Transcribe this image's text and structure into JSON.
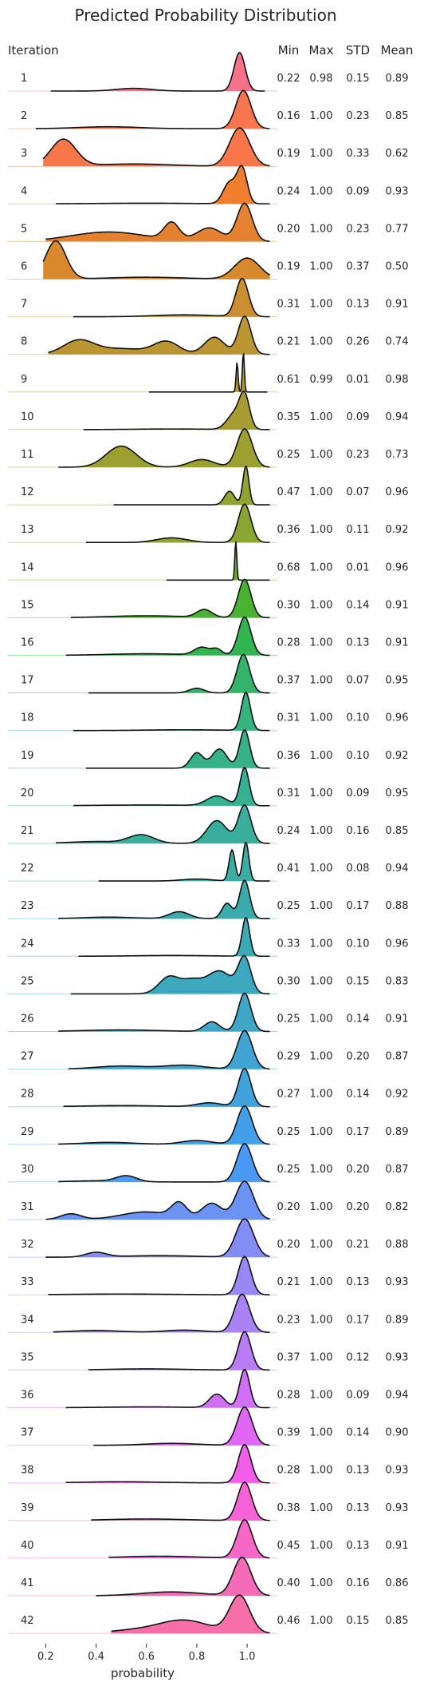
{
  "chart_data": {
    "type": "ridgeline",
    "title": "Predicted Probability Distribution",
    "xlabel": "probability",
    "xticks": [
      "0.2",
      "0.4",
      "0.6",
      "0.8",
      "1.0"
    ],
    "xlim": [
      0.05,
      1.12
    ],
    "grid": false,
    "row_label_header": "Iteration",
    "stat_headers": [
      "Min",
      "Max",
      "STD",
      "Mean"
    ],
    "rows": [
      {
        "iteration": "1",
        "min": "0.22",
        "max": "0.98",
        "std": "0.15",
        "mean": "0.89",
        "color": "#f77189",
        "peaks": [
          [
            0.97,
            0.022,
            1.0
          ],
          [
            0.55,
            0.07,
            0.07
          ]
        ]
      },
      {
        "iteration": "2",
        "min": "0.16",
        "max": "1.00",
        "std": "0.23",
        "mean": "0.85",
        "color": "#f7754f",
        "peaks": [
          [
            0.985,
            0.03,
            1.0
          ],
          [
            0.45,
            0.12,
            0.05
          ]
        ]
      },
      {
        "iteration": "3",
        "min": "0.19",
        "max": "1.00",
        "std": "0.33",
        "mean": "0.62",
        "color": "#f7764a",
        "peaks": [
          [
            0.97,
            0.04,
            1.0
          ],
          [
            0.27,
            0.05,
            0.7
          ],
          [
            0.55,
            0.15,
            0.06
          ]
        ]
      },
      {
        "iteration": "4",
        "min": "0.24",
        "max": "1.00",
        "std": "0.09",
        "mean": "0.93",
        "color": "#ef7e2e",
        "peaks": [
          [
            0.98,
            0.02,
            1.0
          ],
          [
            0.93,
            0.025,
            0.6
          ],
          [
            0.6,
            0.2,
            0.02
          ]
        ]
      },
      {
        "iteration": "5",
        "min": "0.20",
        "max": "1.00",
        "std": "0.23",
        "mean": "0.77",
        "color": "#e48231",
        "peaks": [
          [
            0.99,
            0.03,
            1.0
          ],
          [
            0.7,
            0.03,
            0.45
          ],
          [
            0.85,
            0.05,
            0.35
          ],
          [
            0.45,
            0.15,
            0.25
          ]
        ]
      },
      {
        "iteration": "6",
        "min": "0.19",
        "max": "1.00",
        "std": "0.37",
        "mean": "0.50",
        "color": "#d8892e",
        "peaks": [
          [
            0.24,
            0.04,
            1.0
          ],
          [
            1.0,
            0.05,
            0.55
          ],
          [
            0.6,
            0.15,
            0.05
          ]
        ]
      },
      {
        "iteration": "7",
        "min": "0.31",
        "max": "1.00",
        "std": "0.13",
        "mean": "0.91",
        "color": "#c98f31",
        "peaks": [
          [
            0.98,
            0.025,
            1.0
          ],
          [
            0.75,
            0.12,
            0.05
          ]
        ]
      },
      {
        "iteration": "8",
        "min": "0.21",
        "max": "1.00",
        "std": "0.26",
        "mean": "0.74",
        "color": "#bb9531",
        "peaks": [
          [
            0.99,
            0.025,
            1.0
          ],
          [
            0.33,
            0.06,
            0.35
          ],
          [
            0.68,
            0.05,
            0.32
          ],
          [
            0.87,
            0.04,
            0.45
          ],
          [
            0.5,
            0.1,
            0.15
          ]
        ]
      },
      {
        "iteration": "9",
        "min": "0.61",
        "max": "0.99",
        "std": "0.01",
        "mean": "0.98",
        "color": "#b09931",
        "peaks": [
          [
            0.985,
            0.004,
            1.0
          ],
          [
            0.96,
            0.004,
            0.75
          ]
        ]
      },
      {
        "iteration": "10",
        "min": "0.35",
        "max": "1.00",
        "std": "0.09",
        "mean": "0.94",
        "color": "#a69c31",
        "peaks": [
          [
            0.99,
            0.02,
            1.0
          ],
          [
            0.95,
            0.03,
            0.5
          ],
          [
            0.7,
            0.15,
            0.02
          ]
        ]
      },
      {
        "iteration": "11",
        "min": "0.25",
        "max": "1.00",
        "std": "0.23",
        "mean": "0.73",
        "color": "#9ca031",
        "peaks": [
          [
            0.99,
            0.03,
            1.0
          ],
          [
            0.5,
            0.06,
            0.55
          ],
          [
            0.82,
            0.05,
            0.2
          ]
        ]
      },
      {
        "iteration": "12",
        "min": "0.47",
        "max": "1.00",
        "std": "0.07",
        "mean": "0.96",
        "color": "#94a231",
        "peaks": [
          [
            0.995,
            0.012,
            1.0
          ],
          [
            0.93,
            0.02,
            0.35
          ]
        ]
      },
      {
        "iteration": "13",
        "min": "0.36",
        "max": "1.00",
        "std": "0.11",
        "mean": "0.92",
        "color": "#8aa531",
        "peaks": [
          [
            0.99,
            0.025,
            1.0
          ],
          [
            0.7,
            0.06,
            0.12
          ]
        ]
      },
      {
        "iteration": "14",
        "min": "0.68",
        "max": "1.00",
        "std": "0.01",
        "mean": "0.96",
        "color": "#6cad31",
        "peaks": [
          [
            0.955,
            0.004,
            1.0
          ]
        ]
      },
      {
        "iteration": "15",
        "min": "0.30",
        "max": "1.00",
        "std": "0.14",
        "mean": "0.91",
        "color": "#4ab232",
        "peaks": [
          [
            0.99,
            0.025,
            1.0
          ],
          [
            0.83,
            0.03,
            0.2
          ],
          [
            0.6,
            0.15,
            0.05
          ]
        ]
      },
      {
        "iteration": "16",
        "min": "0.28",
        "max": "1.00",
        "std": "0.13",
        "mean": "0.91",
        "color": "#32b450",
        "peaks": [
          [
            0.99,
            0.025,
            1.0
          ],
          [
            0.82,
            0.03,
            0.2
          ],
          [
            0.88,
            0.02,
            0.15
          ],
          [
            0.6,
            0.15,
            0.04
          ]
        ]
      },
      {
        "iteration": "17",
        "min": "0.37",
        "max": "1.00",
        "std": "0.07",
        "mean": "0.95",
        "color": "#34b36b",
        "peaks": [
          [
            0.985,
            0.025,
            1.0
          ],
          [
            0.8,
            0.03,
            0.12
          ]
        ]
      },
      {
        "iteration": "18",
        "min": "0.31",
        "max": "1.00",
        "std": "0.10",
        "mean": "0.96",
        "color": "#36b27c",
        "peaks": [
          [
            0.995,
            0.018,
            1.0
          ],
          [
            0.75,
            0.15,
            0.02
          ]
        ]
      },
      {
        "iteration": "19",
        "min": "0.36",
        "max": "1.00",
        "std": "0.10",
        "mean": "0.92",
        "color": "#37b188",
        "peaks": [
          [
            0.99,
            0.02,
            1.0
          ],
          [
            0.89,
            0.03,
            0.5
          ],
          [
            0.8,
            0.025,
            0.4
          ]
        ]
      },
      {
        "iteration": "20",
        "min": "0.31",
        "max": "1.00",
        "std": "0.09",
        "mean": "0.95",
        "color": "#38b092",
        "peaks": [
          [
            0.99,
            0.018,
            1.0
          ],
          [
            0.88,
            0.04,
            0.25
          ],
          [
            0.6,
            0.2,
            0.02
          ]
        ]
      },
      {
        "iteration": "21",
        "min": "0.24",
        "max": "1.00",
        "std": "0.16",
        "mean": "0.85",
        "color": "#39ae9c",
        "peaks": [
          [
            0.99,
            0.025,
            1.0
          ],
          [
            0.88,
            0.04,
            0.6
          ],
          [
            0.58,
            0.05,
            0.22
          ],
          [
            0.4,
            0.1,
            0.05
          ]
        ]
      },
      {
        "iteration": "22",
        "min": "0.41",
        "max": "1.00",
        "std": "0.08",
        "mean": "0.94",
        "color": "#3aada4",
        "peaks": [
          [
            0.995,
            0.012,
            1.0
          ],
          [
            0.94,
            0.012,
            0.8
          ],
          [
            0.8,
            0.06,
            0.05
          ]
        ]
      },
      {
        "iteration": "23",
        "min": "0.25",
        "max": "1.00",
        "std": "0.17",
        "mean": "0.88",
        "color": "#3babad",
        "peaks": [
          [
            0.99,
            0.02,
            1.0
          ],
          [
            0.92,
            0.02,
            0.4
          ],
          [
            0.73,
            0.04,
            0.18
          ],
          [
            0.45,
            0.1,
            0.04
          ]
        ]
      },
      {
        "iteration": "24",
        "min": "0.33",
        "max": "1.00",
        "std": "0.10",
        "mean": "0.96",
        "color": "#3caab5",
        "peaks": [
          [
            0.995,
            0.015,
            1.0
          ],
          [
            0.7,
            0.15,
            0.02
          ]
        ]
      },
      {
        "iteration": "25",
        "min": "0.30",
        "max": "1.00",
        "std": "0.15",
        "mean": "0.83",
        "color": "#3ea8be",
        "peaks": [
          [
            0.99,
            0.025,
            1.0
          ],
          [
            0.89,
            0.05,
            0.65
          ],
          [
            0.69,
            0.04,
            0.48
          ],
          [
            0.78,
            0.04,
            0.35
          ]
        ]
      },
      {
        "iteration": "26",
        "min": "0.25",
        "max": "1.00",
        "std": "0.14",
        "mean": "0.91",
        "color": "#3fa6c8",
        "peaks": [
          [
            0.99,
            0.025,
            1.0
          ],
          [
            0.86,
            0.03,
            0.25
          ],
          [
            0.5,
            0.15,
            0.04
          ]
        ]
      },
      {
        "iteration": "27",
        "min": "0.29",
        "max": "1.00",
        "std": "0.20",
        "mean": "0.87",
        "color": "#41a4d2",
        "peaks": [
          [
            0.99,
            0.03,
            1.0
          ],
          [
            0.5,
            0.1,
            0.08
          ],
          [
            0.75,
            0.08,
            0.1
          ]
        ]
      },
      {
        "iteration": "28",
        "min": "0.27",
        "max": "1.00",
        "std": "0.14",
        "mean": "0.92",
        "color": "#42a2dc",
        "peaks": [
          [
            0.99,
            0.025,
            1.0
          ],
          [
            0.85,
            0.05,
            0.1
          ],
          [
            0.5,
            0.15,
            0.03
          ]
        ]
      },
      {
        "iteration": "29",
        "min": "0.25",
        "max": "1.00",
        "std": "0.17",
        "mean": "0.89",
        "color": "#449fe9",
        "peaks": [
          [
            0.99,
            0.03,
            1.0
          ],
          [
            0.8,
            0.06,
            0.1
          ],
          [
            0.45,
            0.1,
            0.05
          ]
        ]
      },
      {
        "iteration": "30",
        "min": "0.25",
        "max": "1.00",
        "std": "0.20",
        "mean": "0.87",
        "color": "#4a99f4",
        "peaks": [
          [
            0.99,
            0.03,
            1.0
          ],
          [
            0.52,
            0.04,
            0.15
          ],
          [
            0.4,
            0.1,
            0.03
          ]
        ]
      },
      {
        "iteration": "31",
        "min": "0.20",
        "max": "1.00",
        "std": "0.20",
        "mean": "0.82",
        "color": "#6b93f4",
        "peaks": [
          [
            0.99,
            0.035,
            1.0
          ],
          [
            0.86,
            0.04,
            0.42
          ],
          [
            0.73,
            0.03,
            0.38
          ],
          [
            0.3,
            0.04,
            0.15
          ],
          [
            0.6,
            0.1,
            0.2
          ]
        ]
      },
      {
        "iteration": "32",
        "min": "0.20",
        "max": "1.00",
        "std": "0.21",
        "mean": "0.88",
        "color": "#838df4",
        "peaks": [
          [
            0.99,
            0.035,
            1.0
          ],
          [
            0.4,
            0.04,
            0.12
          ],
          [
            0.65,
            0.15,
            0.04
          ]
        ]
      },
      {
        "iteration": "33",
        "min": "0.21",
        "max": "1.00",
        "std": "0.13",
        "mean": "0.93",
        "color": "#9887f4",
        "peaks": [
          [
            0.99,
            0.025,
            1.0
          ],
          [
            0.5,
            0.2,
            0.02
          ]
        ]
      },
      {
        "iteration": "34",
        "min": "0.23",
        "max": "1.00",
        "std": "0.17",
        "mean": "0.89",
        "color": "#a982f4",
        "peaks": [
          [
            0.98,
            0.03,
            1.0
          ],
          [
            0.4,
            0.1,
            0.05
          ],
          [
            0.75,
            0.08,
            0.06
          ]
        ]
      },
      {
        "iteration": "35",
        "min": "0.37",
        "max": "1.00",
        "std": "0.12",
        "mean": "0.93",
        "color": "#b97cf4",
        "peaks": [
          [
            0.99,
            0.025,
            1.0
          ],
          [
            0.6,
            0.15,
            0.03
          ]
        ]
      },
      {
        "iteration": "36",
        "min": "0.28",
        "max": "1.00",
        "std": "0.09",
        "mean": "0.94",
        "color": "#d070f4",
        "peaks": [
          [
            0.99,
            0.02,
            1.0
          ],
          [
            0.88,
            0.03,
            0.35
          ],
          [
            0.6,
            0.15,
            0.02
          ]
        ]
      },
      {
        "iteration": "37",
        "min": "0.39",
        "max": "1.00",
        "std": "0.14",
        "mean": "0.90",
        "color": "#e066f4",
        "peaks": [
          [
            0.99,
            0.03,
            1.0
          ],
          [
            0.7,
            0.1,
            0.05
          ]
        ]
      },
      {
        "iteration": "38",
        "min": "0.28",
        "max": "1.00",
        "std": "0.13",
        "mean": "0.93",
        "color": "#f35ee8",
        "peaks": [
          [
            0.99,
            0.025,
            1.0
          ],
          [
            0.5,
            0.15,
            0.03
          ]
        ]
      },
      {
        "iteration": "39",
        "min": "0.38",
        "max": "1.00",
        "std": "0.13",
        "mean": "0.93",
        "color": "#f563d6",
        "peaks": [
          [
            0.99,
            0.028,
            1.0
          ],
          [
            0.6,
            0.15,
            0.04
          ]
        ]
      },
      {
        "iteration": "40",
        "min": "0.45",
        "max": "1.00",
        "std": "0.13",
        "mean": "0.91",
        "color": "#f668c6",
        "peaks": [
          [
            0.99,
            0.03,
            1.0
          ],
          [
            0.65,
            0.15,
            0.05
          ]
        ]
      },
      {
        "iteration": "41",
        "min": "0.40",
        "max": "1.00",
        "std": "0.16",
        "mean": "0.86",
        "color": "#f66bb8",
        "peaks": [
          [
            0.98,
            0.035,
            1.0
          ],
          [
            0.7,
            0.12,
            0.1
          ]
        ]
      },
      {
        "iteration": "42",
        "min": "0.46",
        "max": "1.00",
        "std": "0.15",
        "mean": "0.85",
        "color": "#f66fa8",
        "peaks": [
          [
            0.97,
            0.04,
            1.0
          ],
          [
            0.75,
            0.1,
            0.35
          ],
          [
            0.55,
            0.1,
            0.08
          ]
        ]
      }
    ]
  }
}
